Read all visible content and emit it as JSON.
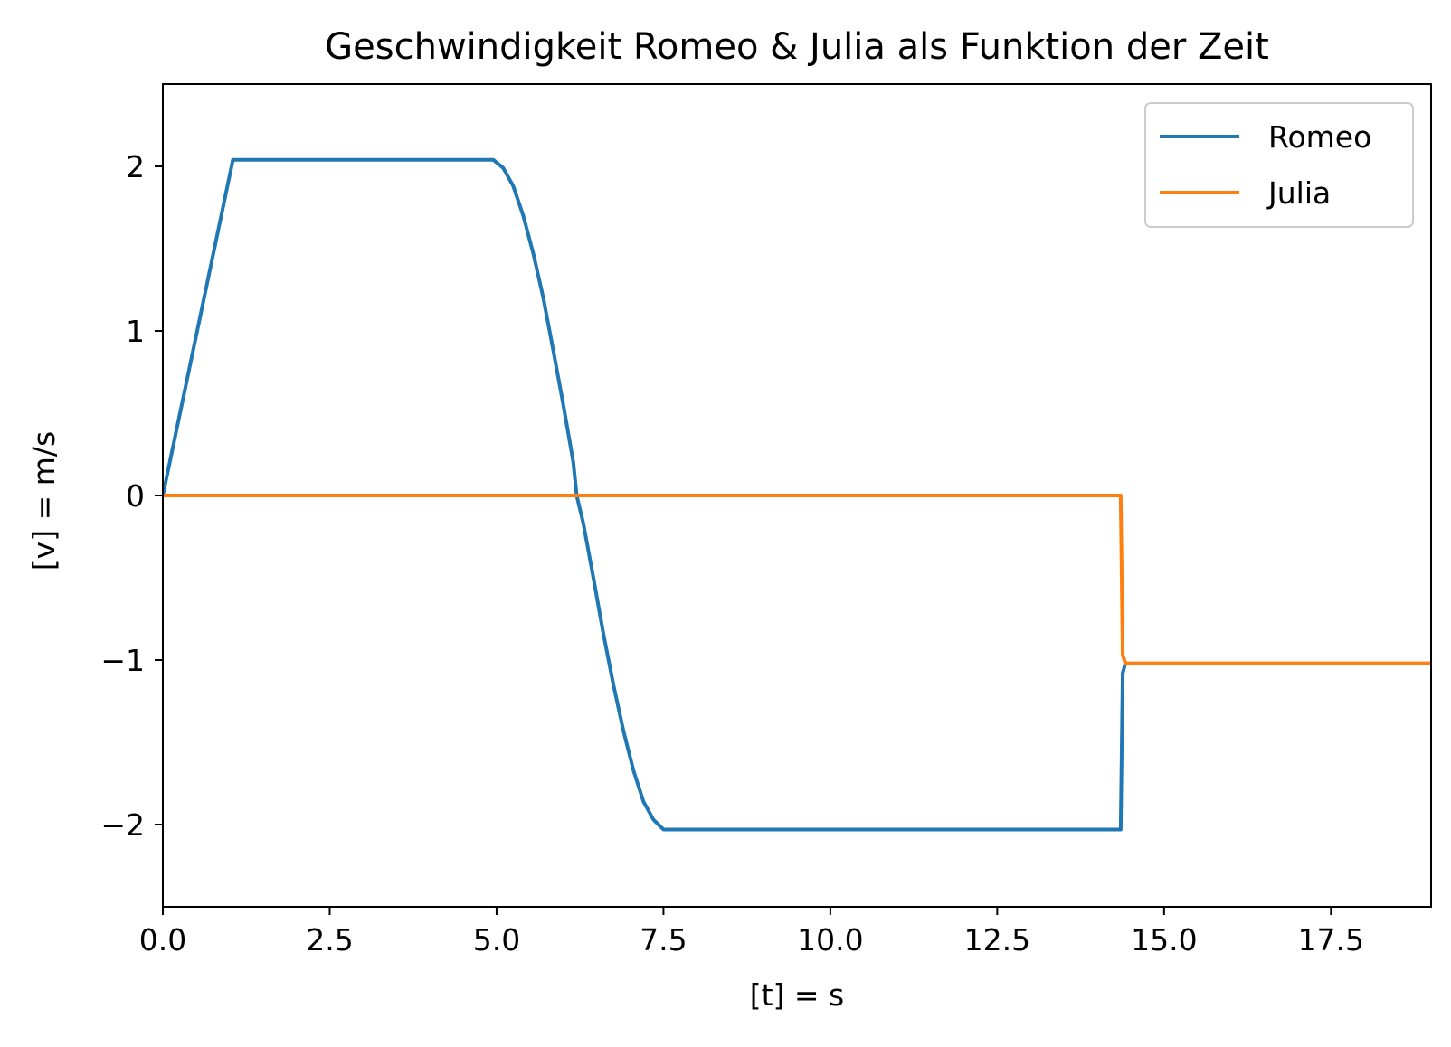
{
  "chart_data": {
    "type": "line",
    "title": "Geschwindigkeit Romeo & Julia als Funktion der Zeit",
    "xlabel": "[t] = s",
    "ylabel": "[v] = m/s",
    "xlim": [
      0,
      19
    ],
    "ylim": [
      -2.5,
      2.5
    ],
    "xticks": [
      0.0,
      2.5,
      5.0,
      7.5,
      10.0,
      12.5,
      15.0,
      17.5
    ],
    "xtick_labels": [
      "0.0",
      "2.5",
      "5.0",
      "7.5",
      "10.0",
      "12.5",
      "15.0",
      "17.5"
    ],
    "yticks": [
      -2,
      -1,
      0,
      1,
      2
    ],
    "ytick_labels": [
      "−2",
      "−1",
      "0",
      "1",
      "2"
    ],
    "grid": false,
    "legend_position": "top-right",
    "series": [
      {
        "name": "Romeo",
        "color": "#1f77b4",
        "points": [
          [
            0.0,
            0.0
          ],
          [
            1.05,
            2.04
          ],
          [
            4.95,
            2.04
          ],
          [
            5.1,
            1.99
          ],
          [
            5.25,
            1.88
          ],
          [
            5.4,
            1.7
          ],
          [
            5.55,
            1.47
          ],
          [
            5.7,
            1.2
          ],
          [
            5.85,
            0.88
          ],
          [
            6.0,
            0.55
          ],
          [
            6.15,
            0.2
          ],
          [
            6.2,
            0.0
          ],
          [
            6.3,
            -0.17
          ],
          [
            6.45,
            -0.5
          ],
          [
            6.6,
            -0.84
          ],
          [
            6.75,
            -1.15
          ],
          [
            6.9,
            -1.43
          ],
          [
            7.05,
            -1.67
          ],
          [
            7.2,
            -1.86
          ],
          [
            7.35,
            -1.97
          ],
          [
            7.5,
            -2.03
          ],
          [
            14.35,
            -2.03
          ],
          [
            14.38,
            -1.08
          ],
          [
            14.42,
            -1.02
          ]
        ]
      },
      {
        "name": "Julia",
        "color": "#ff7f0e",
        "points": [
          [
            0.0,
            0.0
          ],
          [
            14.35,
            0.0
          ],
          [
            14.38,
            -0.97
          ],
          [
            14.42,
            -1.02
          ],
          [
            19.0,
            -1.02
          ]
        ]
      }
    ]
  }
}
